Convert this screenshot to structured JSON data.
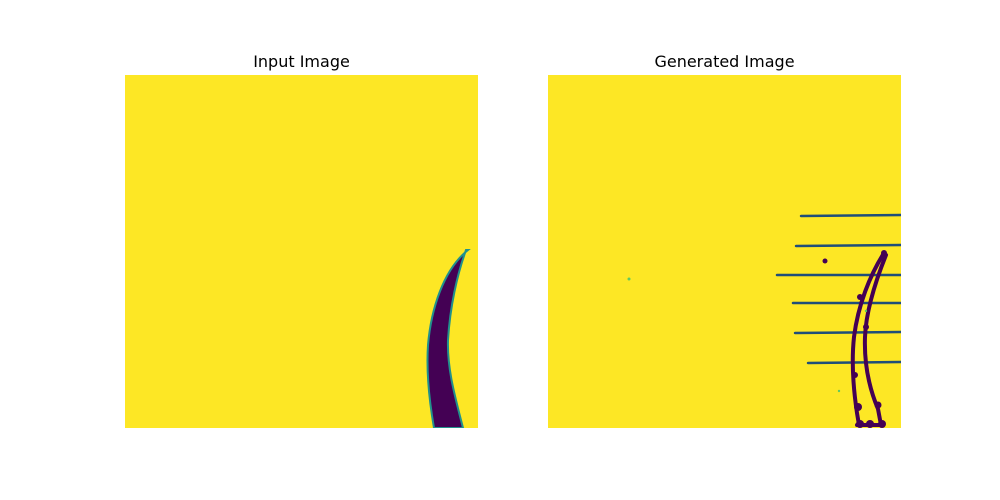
{
  "figure": {
    "panels": [
      {
        "title": "Input Image"
      },
      {
        "title": "Generated Image"
      }
    ],
    "colors": {
      "background": "#fde725",
      "foreground": "#440154",
      "edge": "#21918c",
      "speck": "#5ec962"
    }
  }
}
